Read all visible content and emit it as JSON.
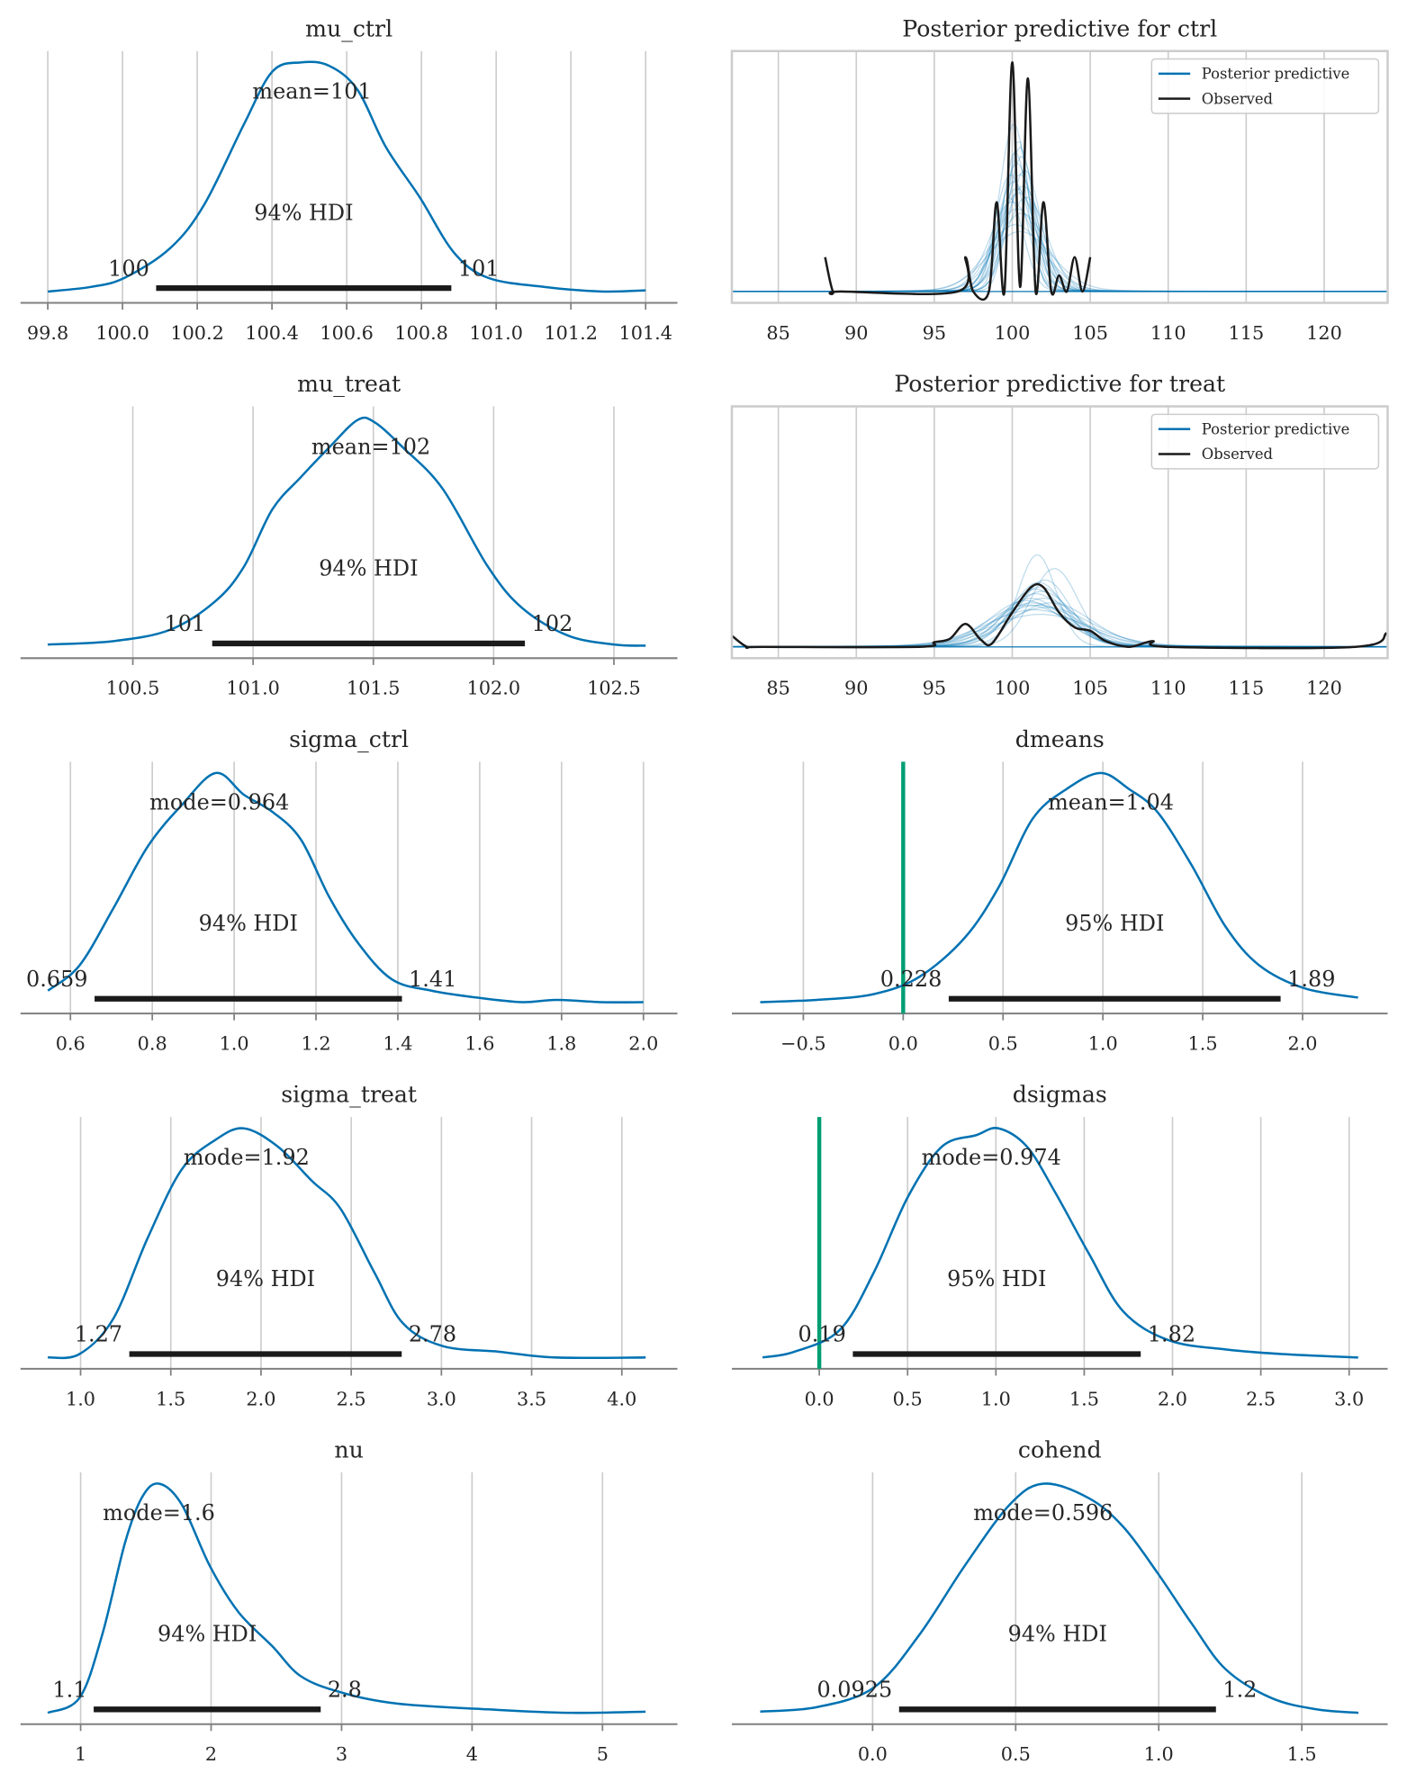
{
  "colors": {
    "kde": "#0072B2",
    "observed": "#1a1a1a",
    "hdi": "#1a1a1a",
    "ref": "#009E73",
    "ppc": "#0072B2"
  },
  "chart_data": [
    {
      "type": "line",
      "kind": "kde",
      "title": "mu_ctrl",
      "xlim": [
        99.727,
        101.485
      ],
      "xticks": [
        99.8,
        100.0,
        100.2,
        100.4,
        100.6,
        100.8,
        101.0,
        101.2,
        101.4
      ],
      "tick_labels": [
        "99.8",
        "100.0",
        "100.2",
        "100.4",
        "100.6",
        "100.8",
        "101.0",
        "101.2",
        "101.4"
      ],
      "curve": {
        "x": [
          99.8,
          99.915,
          100.006,
          100.128,
          100.219,
          100.325,
          100.401,
          100.477,
          100.553,
          100.629,
          100.705,
          100.796,
          100.887,
          100.978,
          101.13,
          101.281,
          101.4
        ],
        "y": [
          0,
          0.02,
          0.06,
          0.19,
          0.38,
          0.73,
          0.96,
          1.0,
          0.985,
          0.88,
          0.63,
          0.41,
          0.17,
          0.06,
          0.02,
          0,
          0.005
        ]
      },
      "point_estimate": 100.507,
      "point_label": "mean=101",
      "hdi": [
        100.09,
        100.88
      ],
      "hdi_text": [
        "100",
        "101"
      ],
      "hdi_label": "94% HDI"
    },
    {
      "type": "line",
      "kind": "ppc",
      "title": "Posterior predictive for ctrl",
      "xlim": [
        82.02,
        124.07
      ],
      "xticks": [
        85,
        90,
        95,
        100,
        105,
        110,
        115,
        120
      ],
      "tick_labels": [
        "85",
        "90",
        "95",
        "100",
        "105",
        "110",
        "115",
        "120"
      ],
      "legend": [
        "Posterior predictive",
        "Observed"
      ],
      "observed": {
        "x": [
          88,
          88.5,
          89,
          96.5,
          97,
          97.5,
          98.5,
          99,
          99.5,
          100,
          100.5,
          101,
          101.5,
          102,
          102.5,
          103,
          103.5,
          104,
          104.5,
          105
        ],
        "y": [
          0.15,
          0,
          0,
          0,
          0.15,
          0,
          0,
          0.39,
          0,
          1.0,
          0.02,
          0.93,
          0,
          0.39,
          0,
          0.07,
          0,
          0.15,
          0,
          0.15
        ]
      },
      "draws": [
        [
          100.3,
          1.0,
          0.55
        ],
        [
          100.1,
          0.9,
          0.72
        ],
        [
          100.5,
          1.1,
          0.5
        ],
        [
          100.4,
          1.3,
          0.42
        ],
        [
          100.2,
          0.8,
          0.6
        ],
        [
          100.7,
          1.2,
          0.45
        ],
        [
          99.9,
          1.0,
          0.5
        ],
        [
          100.6,
          0.9,
          0.58
        ],
        [
          100.3,
          1.5,
          0.35
        ],
        [
          100.0,
          1.4,
          0.38
        ],
        [
          100.8,
          1.0,
          0.52
        ],
        [
          100.4,
          0.7,
          0.65
        ],
        [
          100.2,
          1.8,
          0.28
        ],
        [
          100.5,
          2.0,
          0.25
        ],
        [
          100.9,
          1.3,
          0.4
        ],
        [
          100.1,
          1.1,
          0.47
        ],
        [
          100.6,
          1.6,
          0.33
        ],
        [
          100.3,
          1.2,
          0.44
        ],
        [
          99.8,
          0.9,
          0.4
        ],
        [
          100.5,
          0.85,
          0.62
        ]
      ]
    },
    {
      "type": "line",
      "kind": "kde",
      "title": "mu_treat",
      "xlim": [
        100.033,
        102.764
      ],
      "xticks": [
        100.5,
        101.0,
        101.5,
        102.0,
        102.5
      ],
      "tick_labels": [
        "100.5",
        "101.0",
        "101.5",
        "102.0",
        "102.5"
      ],
      "curve": {
        "x": [
          100.146,
          100.42,
          100.656,
          100.844,
          100.962,
          101.08,
          101.198,
          101.316,
          101.434,
          101.505,
          101.623,
          101.788,
          101.976,
          102.118,
          102.307,
          102.5,
          102.632
        ],
        "y": [
          0.01,
          0.025,
          0.075,
          0.2,
          0.35,
          0.6,
          0.74,
          0.87,
          0.99,
          0.98,
          0.87,
          0.69,
          0.35,
          0.17,
          0.05,
          0.01,
          0.005
        ]
      },
      "point_estimate": 101.49,
      "point_label": "mean=102",
      "hdi": [
        100.83,
        102.13
      ],
      "hdi_text": [
        "101",
        "102"
      ],
      "hdi_label": "94% HDI"
    },
    {
      "type": "line",
      "kind": "ppc",
      "title": "Posterior predictive for treat",
      "xlim": [
        82.02,
        124.07
      ],
      "xticks": [
        85,
        90,
        95,
        100,
        105,
        110,
        115,
        120
      ],
      "tick_labels": [
        "85",
        "90",
        "95",
        "100",
        "105",
        "110",
        "115",
        "120"
      ],
      "legend": [
        "Posterior predictive",
        "Observed"
      ],
      "observed": {
        "x": [
          82,
          83,
          84,
          94,
          95,
          96,
          97,
          98,
          98.7,
          100,
          101.2,
          102,
          103,
          104,
          105,
          106,
          107.5,
          109,
          110,
          122,
          124
        ],
        "y": [
          0.05,
          0,
          0,
          0,
          0.02,
          0.035,
          0.1,
          0.03,
          0.015,
          0.15,
          0.26,
          0.26,
          0.15,
          0.085,
          0.07,
          0.025,
          0,
          0.025,
          0,
          0,
          0.06
        ]
      },
      "draws": [
        [
          101.5,
          2.0,
          0.22
        ],
        [
          101.8,
          1.8,
          0.25
        ],
        [
          101.3,
          2.4,
          0.18
        ],
        [
          102.0,
          2.2,
          0.2
        ],
        [
          101.6,
          1.2,
          0.39
        ],
        [
          102.7,
          1.5,
          0.33
        ],
        [
          101.0,
          2.6,
          0.17
        ],
        [
          101.9,
          2.0,
          0.23
        ],
        [
          101.4,
          3.0,
          0.15
        ],
        [
          102.2,
          2.8,
          0.16
        ],
        [
          101.7,
          1.7,
          0.27
        ],
        [
          101.2,
          2.1,
          0.2
        ],
        [
          102.5,
          2.5,
          0.18
        ],
        [
          101.8,
          3.2,
          0.13
        ],
        [
          101.5,
          1.9,
          0.24
        ],
        [
          100.9,
          2.3,
          0.19
        ],
        [
          102.1,
          1.6,
          0.28
        ],
        [
          101.6,
          2.7,
          0.17
        ]
      ]
    },
    {
      "type": "line",
      "kind": "kde",
      "title": "sigma_ctrl",
      "xlim": [
        0.478,
        2.083
      ],
      "xticks": [
        0.6,
        0.8,
        1.0,
        1.2,
        1.4,
        1.6,
        1.8,
        2.0
      ],
      "tick_labels": [
        "0.6",
        "0.8",
        "1.0",
        "1.2",
        "1.4",
        "1.6",
        "1.8",
        "2.0"
      ],
      "curve": {
        "x": [
          0.545,
          0.622,
          0.705,
          0.789,
          0.872,
          0.955,
          1.024,
          1.094,
          1.163,
          1.232,
          1.302,
          1.385,
          1.482,
          1.593,
          1.704,
          1.787,
          1.898,
          2.0
        ],
        "y": [
          0.05,
          0.16,
          0.41,
          0.68,
          0.86,
          1.0,
          0.905,
          0.83,
          0.71,
          0.46,
          0.26,
          0.1,
          0.05,
          0.02,
          0,
          0.01,
          0,
          0
        ]
      },
      "point_estimate": 0.964,
      "point_label": "mode=0.964",
      "hdi": [
        0.659,
        1.41
      ],
      "hdi_text": [
        "0.659",
        "1.41"
      ],
      "hdi_label": "94% HDI"
    },
    {
      "type": "line",
      "kind": "kde",
      "title": "dmeans",
      "xlim": [
        -0.858,
        2.426
      ],
      "xticks": [
        -0.5,
        0.0,
        0.5,
        1.0,
        1.5,
        2.0
      ],
      "tick_labels": [
        "−0.5",
        "0.0",
        "0.5",
        "1.0",
        "1.5",
        "2.0"
      ],
      "curve": {
        "x": [
          -0.716,
          -0.432,
          -0.148,
          0.08,
          0.307,
          0.477,
          0.648,
          0.818,
          0.989,
          1.131,
          1.273,
          1.443,
          1.614,
          1.784,
          2.011,
          2.278
        ],
        "y": [
          0,
          0.01,
          0.035,
          0.11,
          0.28,
          0.5,
          0.8,
          0.93,
          1.0,
          0.93,
          0.83,
          0.6,
          0.33,
          0.16,
          0.06,
          0.02
        ]
      },
      "point_estimate": 1.04,
      "point_label": "mean=1.04",
      "hdi": [
        0.228,
        1.89
      ],
      "hdi_text": [
        "0.228",
        "1.89"
      ],
      "hdi_label": "95% HDI",
      "ref_val": 0
    },
    {
      "type": "line",
      "kind": "kde",
      "title": "sigma_treat",
      "xlim": [
        0.667,
        4.308
      ],
      "xticks": [
        1.0,
        1.5,
        2.0,
        2.5,
        3.0,
        3.5,
        4.0
      ],
      "tick_labels": [
        "1.0",
        "1.5",
        "2.0",
        "2.5",
        "3.0",
        "3.5",
        "4.0"
      ],
      "curve": {
        "x": [
          0.818,
          0.994,
          1.182,
          1.371,
          1.56,
          1.748,
          1.906,
          2.094,
          2.283,
          2.44,
          2.629,
          2.786,
          3.006,
          3.321,
          3.635,
          4.132
        ],
        "y": [
          0,
          0.015,
          0.17,
          0.52,
          0.82,
          0.95,
          1.0,
          0.92,
          0.77,
          0.65,
          0.37,
          0.15,
          0.05,
          0.025,
          0,
          0
        ]
      },
      "point_estimate": 1.92,
      "point_label": "mode=1.92",
      "hdi": [
        1.27,
        2.78
      ],
      "hdi_text": [
        "1.27",
        "2.78"
      ],
      "hdi_label": "94% HDI"
    },
    {
      "type": "line",
      "kind": "kde",
      "title": "dsigmas",
      "xlim": [
        -0.495,
        3.218
      ],
      "xticks": [
        0.0,
        0.5,
        1.0,
        1.5,
        2.0,
        2.5,
        3.0
      ],
      "tick_labels": [
        "0.0",
        "0.5",
        "1.0",
        "1.5",
        "2.0",
        "2.5",
        "3.0"
      ],
      "curve": {
        "x": [
          -0.321,
          -0.141,
          0.116,
          0.308,
          0.501,
          0.694,
          0.887,
          1.015,
          1.176,
          1.336,
          1.529,
          1.722,
          1.979,
          2.3,
          2.621,
          3.051
        ],
        "y": [
          0,
          0.025,
          0.12,
          0.37,
          0.7,
          0.92,
          0.97,
          1.0,
          0.92,
          0.72,
          0.45,
          0.2,
          0.075,
          0.035,
          0.015,
          0
        ]
      },
      "point_estimate": 0.974,
      "point_label": "mode=0.974",
      "hdi": [
        0.19,
        1.82
      ],
      "hdi_text": [
        "0.19",
        "1.82"
      ],
      "hdi_label": "95% HDI",
      "ref_val": 0
    },
    {
      "type": "line",
      "kind": "kde",
      "title": "nu",
      "xlim": [
        0.539,
        5.574
      ],
      "xticks": [
        1,
        2,
        3,
        4,
        5
      ],
      "tick_labels": [
        "1",
        "2",
        "3",
        "4",
        "5"
      ],
      "curve": {
        "x": [
          0.748,
          0.991,
          1.165,
          1.339,
          1.47,
          1.6,
          1.774,
          1.991,
          2.209,
          2.47,
          2.687,
          2.991,
          3.426,
          4.122,
          4.73,
          5.33
        ],
        "y": [
          0,
          0.065,
          0.34,
          0.74,
          0.94,
          1.0,
          0.91,
          0.64,
          0.44,
          0.29,
          0.16,
          0.09,
          0.04,
          0.015,
          0,
          0.005
        ]
      },
      "point_estimate": 1.6,
      "point_label": "mode=1.6",
      "hdi": [
        1.1,
        2.84
      ],
      "hdi_text": [
        "1.1",
        "2.8"
      ],
      "hdi_label": "94% HDI"
    },
    {
      "type": "line",
      "kind": "kde",
      "title": "cohend",
      "xlim": [
        -0.492,
        1.8
      ],
      "xticks": [
        0.0,
        0.5,
        1.0,
        1.5
      ],
      "tick_labels": [
        "0.0",
        "0.5",
        "1.0",
        "1.5"
      ],
      "curve": {
        "x": [
          -0.393,
          -0.194,
          0.004,
          0.163,
          0.321,
          0.48,
          0.599,
          0.758,
          0.877,
          0.996,
          1.115,
          1.234,
          1.393,
          1.552,
          1.698
        ],
        "y": [
          0.005,
          0.025,
          0.11,
          0.34,
          0.64,
          0.91,
          1.0,
          0.935,
          0.81,
          0.61,
          0.39,
          0.19,
          0.065,
          0.015,
          0
        ]
      },
      "point_estimate": 0.596,
      "point_label": "mode=0.596",
      "hdi": [
        0.0925,
        1.2
      ],
      "hdi_text": [
        "0.0925",
        "1.2"
      ],
      "hdi_label": "94% HDI"
    }
  ]
}
